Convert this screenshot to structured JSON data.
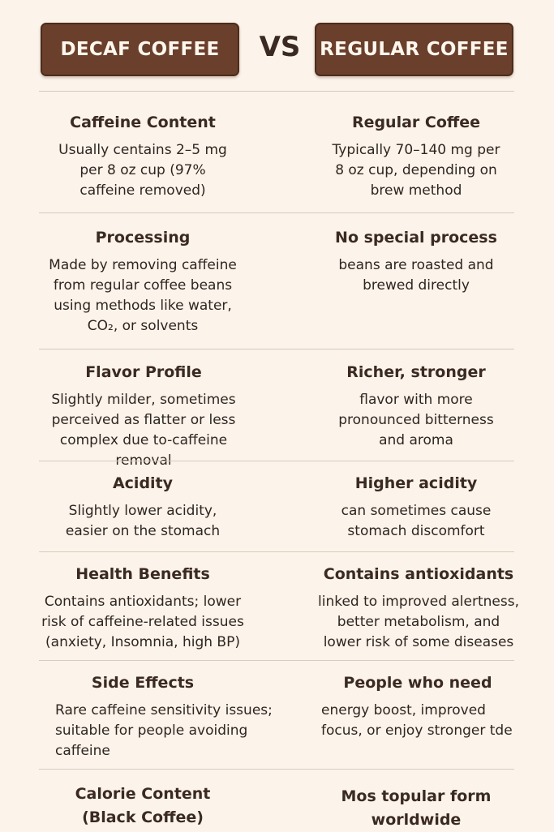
{
  "header": {
    "left_label": "DECAF COFFEE",
    "vs_label": "VS",
    "right_label": "REGULAR COFFEE"
  },
  "rows": [
    {
      "left_title": "Caffeine Content",
      "left_desc": "Usually centains 2–5 mg\nper 8 oz cup (97%\ncaffeine removed)",
      "right_title": "Regular Coffee",
      "right_desc": "Typically 70–140 mg per\n8 oz cup, depending on\nbrew method"
    },
    {
      "left_title": "Processing",
      "left_desc": "Made by removing caffeine\nfrom regular coffee beans\nusing methods like water,\nCO₂, or solvents",
      "right_title": "No special process",
      "right_desc": "beans are roasted and\nbrewed directly"
    },
    {
      "left_title": "Flavor Profile",
      "left_desc": "Slightly milder, sometimes\nperceived as flatter or less\ncomplex due to-caffeine removal",
      "right_title": "Richer, stronger",
      "right_desc": "flavor with more\npronounced bitterness\nand aroma"
    },
    {
      "left_title": "Acidity",
      "left_desc": "Slightly lower acidity,\neasier on the stomach",
      "right_title": "Higher acidity",
      "right_desc": "can sometimes cause\nstomach discomfort"
    },
    {
      "left_title": "Health Benefits",
      "left_desc": "Contains antioxidants; lower\nrisk of caffeine-related issues\n(anxiety, Insomnia, high BP)",
      "right_title": "Contains antioxidants",
      "right_desc": "linked to improved alertness,\nbetter metabolism, and\nlower risk of some diseases"
    },
    {
      "left_title": "Side Effects",
      "left_desc": "Rare caffeine sensitivity issues;\nsuitable for people avoiding\ncaffeine",
      "right_title": "People who need",
      "right_desc": "energy boost, improved\nfocus, or enjoy stronger tde"
    },
    {
      "left_title": "Calorie Content\n(Black Coffee)",
      "left_desc": "",
      "right_title": "Mos topular form\nworldwide",
      "right_desc": ""
    }
  ]
}
